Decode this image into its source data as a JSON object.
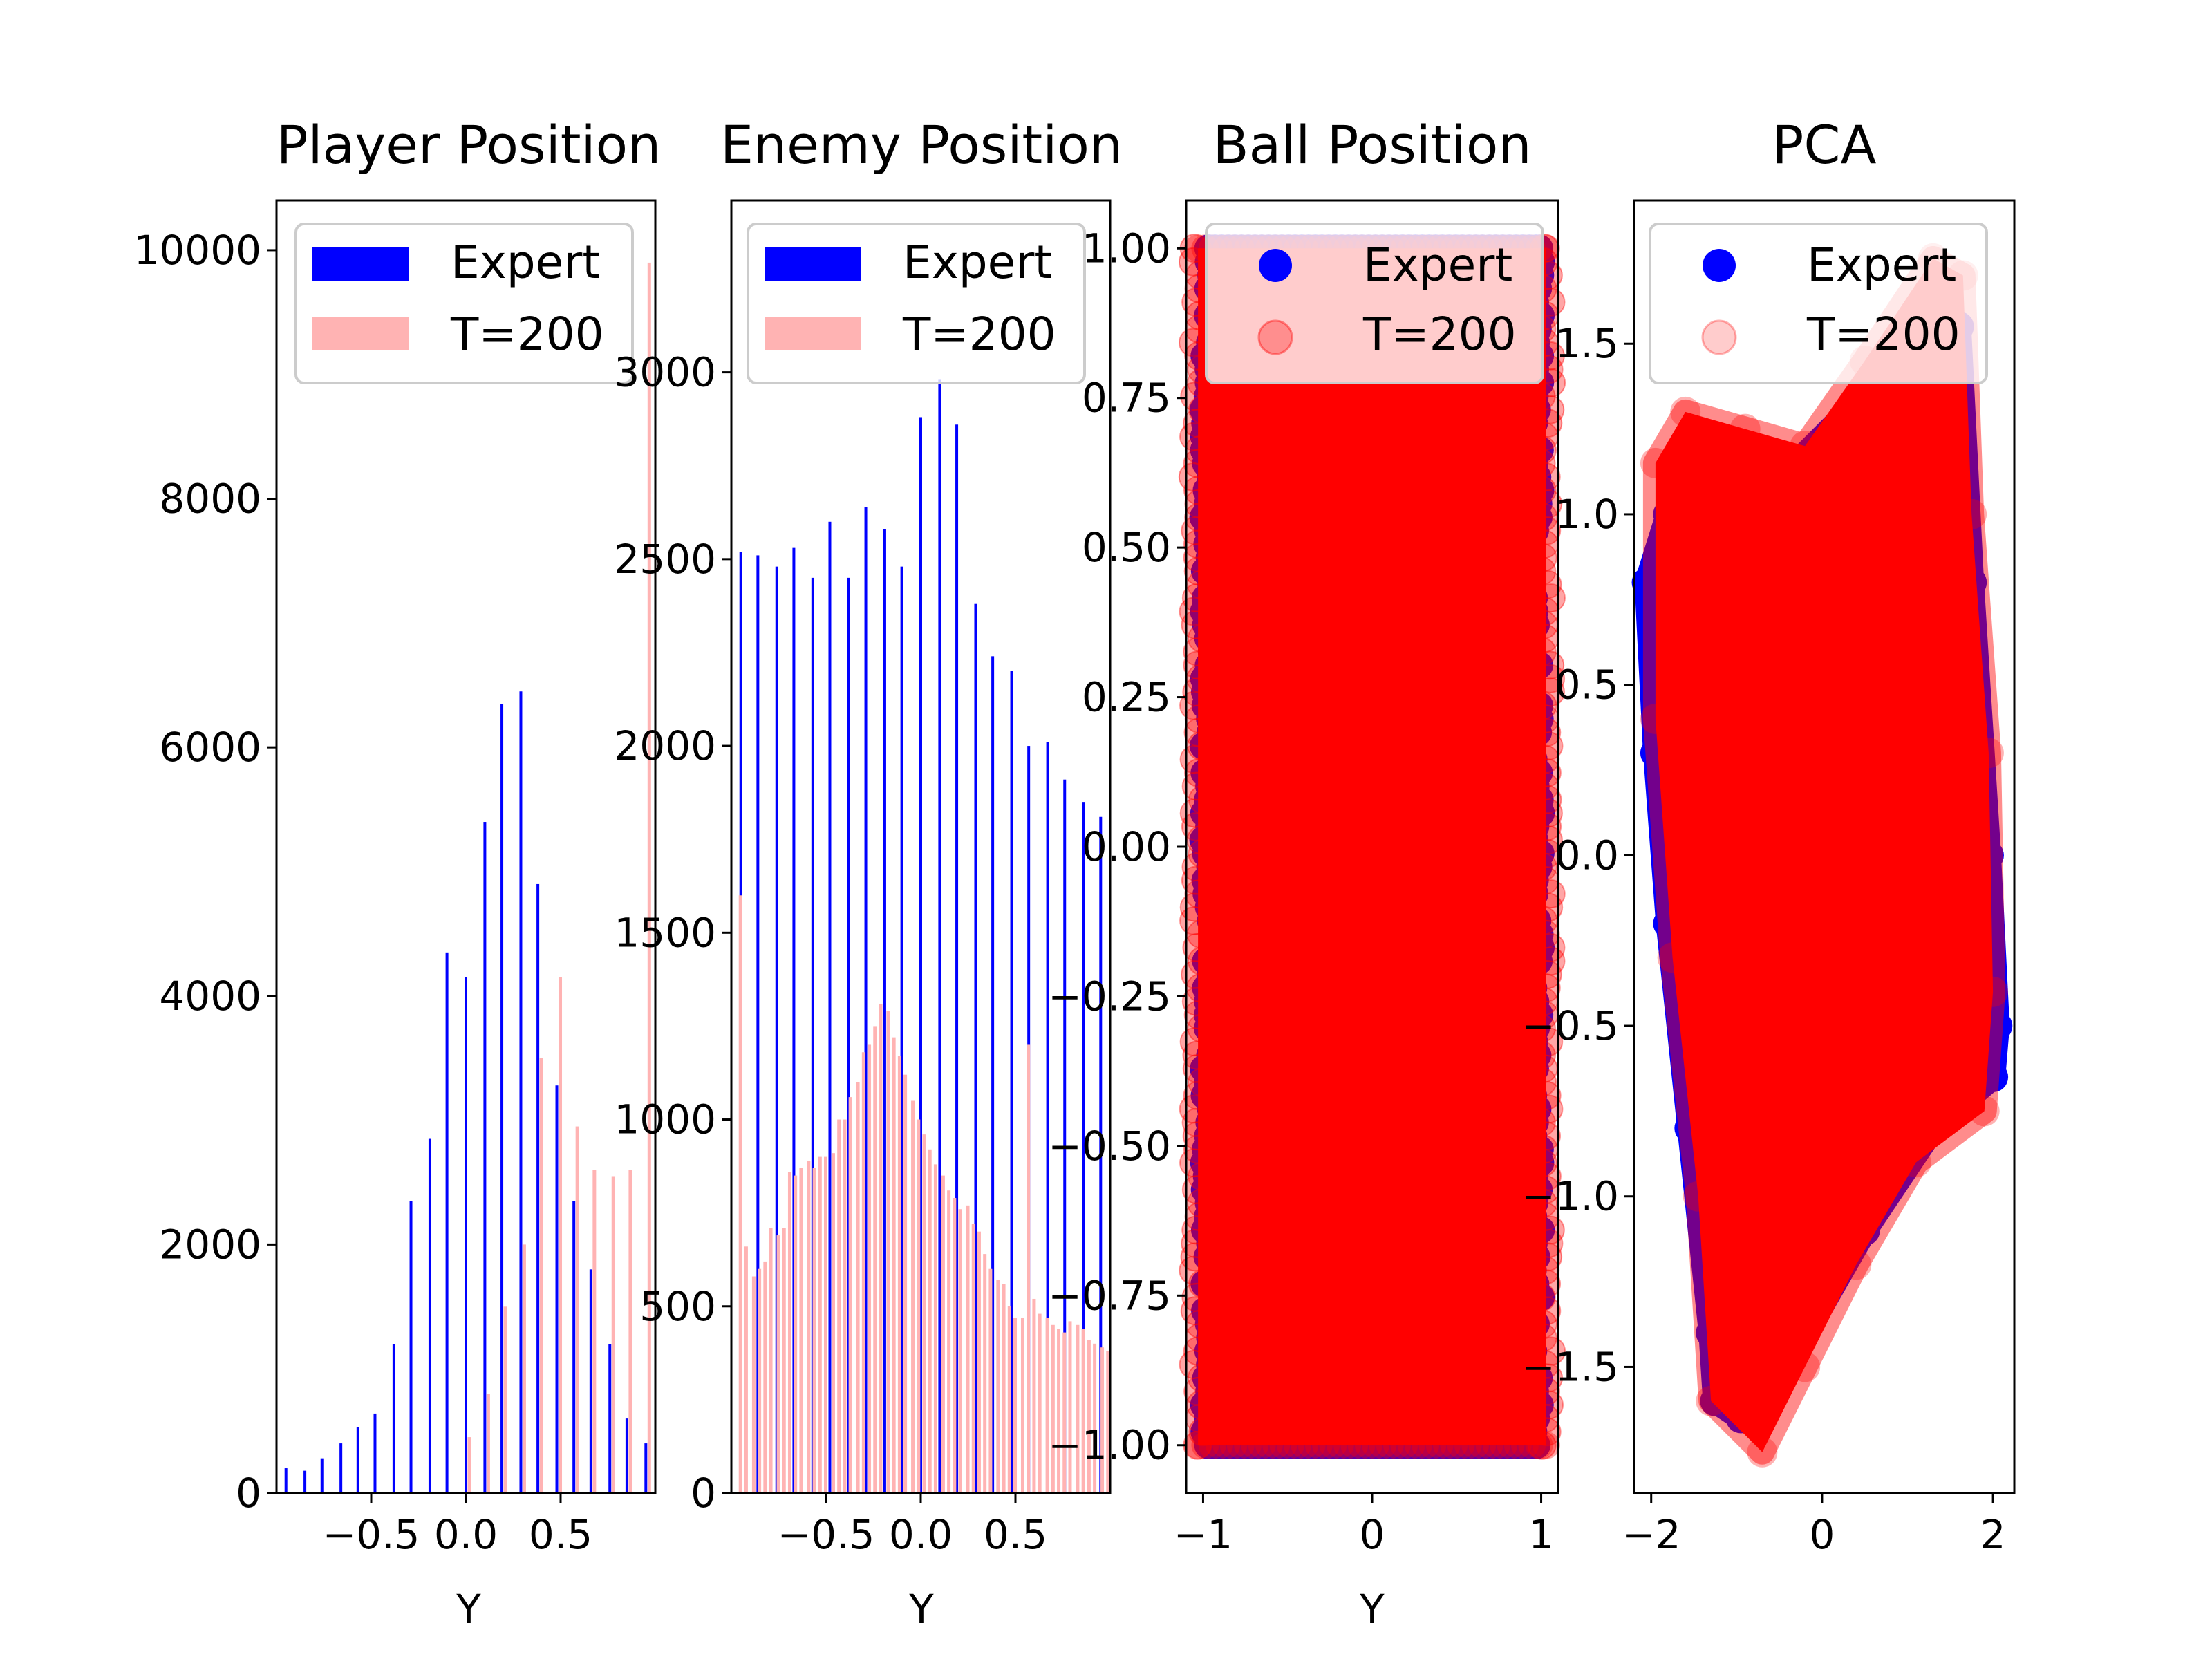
{
  "chart_data": [
    {
      "type": "bar",
      "title": "Player Position",
      "xlabel": "Y",
      "ylabel": "",
      "xlim": [
        -1,
        1
      ],
      "ylim": [
        0,
        10400
      ],
      "xticks": [
        "−0.5",
        "0.0",
        "0.5"
      ],
      "xtick_values": [
        -0.5,
        0.0,
        0.5
      ],
      "yticks": [
        "0",
        "2000",
        "4000",
        "6000",
        "8000",
        "10000"
      ],
      "ytick_values": [
        0,
        2000,
        4000,
        6000,
        8000,
        10000
      ],
      "legend": {
        "placement": "upper-left",
        "entries": [
          "Expert",
          "T=200"
        ]
      },
      "series": [
        {
          "name": "Expert",
          "color": "#0000ff",
          "x": [
            -0.95,
            -0.85,
            -0.76,
            -0.66,
            -0.57,
            -0.48,
            -0.38,
            -0.29,
            -0.19,
            -0.1,
            0.0,
            0.1,
            0.19,
            0.29,
            0.38,
            0.48,
            0.57,
            0.66,
            0.76,
            0.85,
            0.95
          ],
          "values": [
            200,
            180,
            280,
            400,
            530,
            640,
            1200,
            2350,
            2850,
            4350,
            4150,
            5400,
            6350,
            6450,
            4900,
            3280,
            2350,
            1800,
            1200,
            600,
            400
          ]
        },
        {
          "name": "T=200",
          "color": "#ffb3b3",
          "x": [
            -0.95,
            -0.85,
            -0.76,
            -0.66,
            -0.57,
            -0.48,
            -0.38,
            -0.29,
            -0.19,
            -0.1,
            0.0,
            0.1,
            0.19,
            0.29,
            0.38,
            0.48,
            0.57,
            0.66,
            0.76,
            0.85,
            0.95
          ],
          "values": [
            0,
            0,
            0,
            0,
            0,
            0,
            0,
            0,
            0,
            0,
            450,
            800,
            1500,
            2000,
            3500,
            4150,
            2950,
            2600,
            2550,
            2600,
            9900
          ]
        }
      ]
    },
    {
      "type": "bar",
      "title": "Enemy Position",
      "xlabel": "Y",
      "ylabel": "",
      "xlim": [
        -1,
        1
      ],
      "ylim": [
        0,
        3460
      ],
      "xticks": [
        "−0.5",
        "0.0",
        "0.5"
      ],
      "xtick_values": [
        -0.5,
        0.0,
        0.5
      ],
      "yticks": [
        "0",
        "500",
        "1000",
        "1500",
        "2000",
        "2500",
        "3000"
      ],
      "ytick_values": [
        0,
        500,
        1000,
        1500,
        2000,
        2500,
        3000
      ],
      "legend": {
        "placement": "upper-left",
        "entries": [
          "Expert",
          "T=200"
        ]
      },
      "series": [
        {
          "name": "Expert",
          "color": "#0000ff",
          "x": [
            -0.95,
            -0.86,
            -0.76,
            -0.67,
            -0.57,
            -0.48,
            -0.38,
            -0.29,
            -0.19,
            -0.1,
            0.0,
            0.1,
            0.19,
            0.29,
            0.38,
            0.48,
            0.57,
            0.67,
            0.76,
            0.86,
            0.95
          ],
          "values": [
            2520,
            2510,
            2480,
            2530,
            2450,
            2600,
            2450,
            2640,
            2580,
            2480,
            2880,
            2980,
            2860,
            2380,
            2240,
            2200,
            2000,
            2010,
            1910,
            1850,
            1810
          ]
        },
        {
          "name": "T=200",
          "color": "#ffb3b3",
          "x": [
            -0.97,
            -0.94,
            -0.9,
            -0.87,
            -0.84,
            -0.81,
            -0.77,
            -0.74,
            -0.71,
            -0.68,
            -0.65,
            -0.61,
            -0.58,
            -0.55,
            -0.52,
            -0.48,
            -0.45,
            -0.42,
            -0.39,
            -0.35,
            -0.32,
            -0.29,
            -0.26,
            -0.23,
            -0.19,
            -0.16,
            -0.13,
            -0.1,
            -0.06,
            -0.03,
            0.0,
            0.03,
            0.06,
            0.1,
            0.13,
            0.16,
            0.19,
            0.23,
            0.26,
            0.29,
            0.32,
            0.35,
            0.39,
            0.42,
            0.45,
            0.48,
            0.52,
            0.55,
            0.58,
            0.61,
            0.65,
            0.68,
            0.71,
            0.74,
            0.77,
            0.81,
            0.84,
            0.87,
            0.9,
            0.94,
            0.97
          ],
          "values": [
            1600,
            660,
            580,
            600,
            620,
            710,
            690,
            710,
            860,
            850,
            870,
            890,
            870,
            900,
            900,
            910,
            1000,
            1000,
            1060,
            1100,
            1180,
            1200,
            1250,
            1310,
            1290,
            1220,
            1170,
            1120,
            1050,
            1000,
            960,
            920,
            880,
            850,
            810,
            790,
            760,
            770,
            720,
            700,
            640,
            600,
            570,
            560,
            500,
            470,
            470,
            1200,
            520,
            480,
            470,
            450,
            440,
            430,
            460,
            450,
            440,
            410,
            400,
            390,
            380
          ]
        }
      ]
    },
    {
      "type": "scatter",
      "title": "Ball Position",
      "xlabel": "Y",
      "ylabel": "",
      "xlim": [
        -1.1,
        1.1
      ],
      "ylim": [
        -1.08,
        1.08
      ],
      "xticks": [
        "−1",
        "0",
        "1"
      ],
      "xtick_values": [
        -1,
        0,
        1
      ],
      "yticks": [
        "−1.00",
        "−0.75",
        "−0.50",
        "−0.25",
        "0.00",
        "0.25",
        "0.50",
        "0.75",
        "1.00"
      ],
      "ytick_values": [
        -1.0,
        -0.75,
        -0.5,
        -0.25,
        0.0,
        0.25,
        0.5,
        0.75,
        1.0
      ],
      "legend": {
        "placement": "upper-left",
        "entries": [
          "Expert",
          "T=200"
        ]
      },
      "series": [
        {
          "name": "Expert",
          "color": "#0000ff",
          "region": {
            "x": [
              -0.97,
              0.97
            ],
            "y": [
              -1.0,
              1.0
            ]
          }
        },
        {
          "name": "T=200",
          "color": "#ff0000",
          "alpha": 0.2,
          "region": {
            "x": [
              -1.03,
              1.03
            ],
            "y": [
              -1.0,
              1.0
            ]
          }
        }
      ]
    },
    {
      "type": "scatter",
      "title": "PCA",
      "xlabel": "",
      "ylabel": "",
      "xlim": [
        -2.2,
        2.25
      ],
      "ylim": [
        -1.87,
        1.92
      ],
      "xticks": [
        "−2",
        "0",
        "2"
      ],
      "xtick_values": [
        -2,
        0,
        2
      ],
      "yticks": [
        "−1.5",
        "−1.0",
        "−0.5",
        "0.0",
        "0.5",
        "1.0",
        "1.5"
      ],
      "ytick_values": [
        -1.5,
        -1.0,
        -0.5,
        0.0,
        0.5,
        1.0,
        1.5
      ],
      "legend": {
        "placement": "upper-left",
        "entries": [
          "Expert",
          "T=200"
        ]
      },
      "series": [
        {
          "name": "Expert",
          "color": "#0000ff",
          "outline": [
            [
              -2.05,
              0.8
            ],
            [
              -1.95,
              0.3
            ],
            [
              -1.8,
              -0.2
            ],
            [
              -1.55,
              -0.8
            ],
            [
              -1.3,
              -1.4
            ],
            [
              -1.25,
              -1.6
            ],
            [
              -0.95,
              -1.65
            ],
            [
              -0.3,
              -1.45
            ],
            [
              0.5,
              -1.1
            ],
            [
              1.3,
              -0.8
            ],
            [
              2.0,
              -0.65
            ],
            [
              2.05,
              -0.5
            ],
            [
              1.95,
              0.0
            ],
            [
              1.75,
              0.8
            ],
            [
              1.6,
              1.55
            ],
            [
              1.2,
              1.45
            ],
            [
              0.5,
              1.35
            ],
            [
              -0.3,
              1.15
            ],
            [
              -1.0,
              1.1
            ],
            [
              -1.8,
              1.0
            ]
          ]
        },
        {
          "name": "T=200",
          "color": "#ff0000",
          "alpha": 0.2,
          "outline": [
            [
              -1.95,
              1.15
            ],
            [
              -1.95,
              0.4
            ],
            [
              -1.75,
              -0.3
            ],
            [
              -1.45,
              -1.0
            ],
            [
              -1.3,
              -1.6
            ],
            [
              -0.7,
              -1.75
            ],
            [
              -0.2,
              -1.5
            ],
            [
              0.4,
              -1.2
            ],
            [
              1.1,
              -0.9
            ],
            [
              1.9,
              -0.75
            ],
            [
              2.0,
              -0.4
            ],
            [
              1.95,
              0.3
            ],
            [
              1.75,
              1.0
            ],
            [
              1.65,
              1.7
            ],
            [
              1.3,
              1.75
            ],
            [
              0.5,
              1.45
            ],
            [
              -0.2,
              1.2
            ],
            [
              -0.9,
              1.25
            ],
            [
              -1.6,
              1.3
            ]
          ]
        }
      ]
    }
  ]
}
